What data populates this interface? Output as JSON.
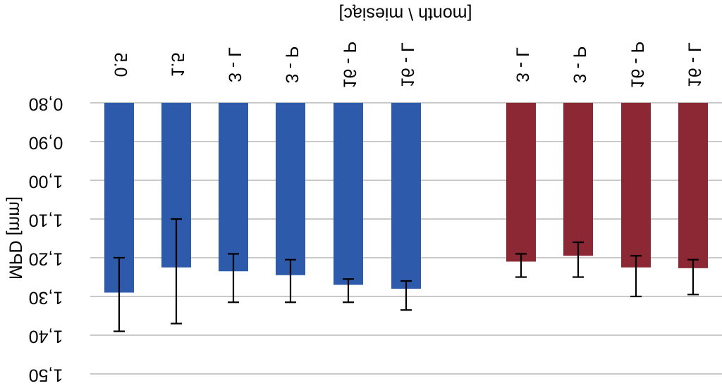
{
  "chart_data": {
    "type": "bar",
    "title": "",
    "xlabel": "[month \\ miesiąc]",
    "ylabel": "MPD [mm]",
    "yticks": [
      "0,80",
      "0,90",
      "1,00",
      "1,10",
      "1,20",
      "1,30",
      "1,40",
      "1,50"
    ],
    "ylim": [
      0.8,
      1.5
    ],
    "y_axis_direction": "downward",
    "image_mirrored_horizontally": true,
    "grid": true,
    "legend": "none",
    "categories": [
      "0.5",
      "1.5",
      "3 - L",
      "3 - P",
      "16 - P",
      "16 - L",
      "3 - L",
      "3 - P",
      "16 - P",
      "16 - L"
    ],
    "series": [
      {
        "color": "#2E5AAC",
        "values": [
          1.29,
          1.225,
          1.235,
          1.245,
          1.27,
          1.28,
          null,
          null,
          null,
          null
        ],
        "error_low": [
          1.2,
          1.1,
          1.19,
          1.205,
          1.255,
          1.26,
          null,
          null,
          null,
          null
        ],
        "error_high": [
          1.39,
          1.37,
          1.315,
          1.315,
          1.315,
          1.335,
          null,
          null,
          null,
          null
        ]
      },
      {
        "color": "#8B2833",
        "values": [
          null,
          null,
          null,
          null,
          null,
          null,
          1.21,
          1.195,
          1.225,
          1.227
        ],
        "error_low": [
          null,
          null,
          null,
          null,
          null,
          null,
          1.19,
          1.16,
          1.195,
          1.205
        ],
        "error_high": [
          null,
          null,
          null,
          null,
          null,
          null,
          1.25,
          1.25,
          1.3,
          1.295
        ]
      }
    ]
  }
}
